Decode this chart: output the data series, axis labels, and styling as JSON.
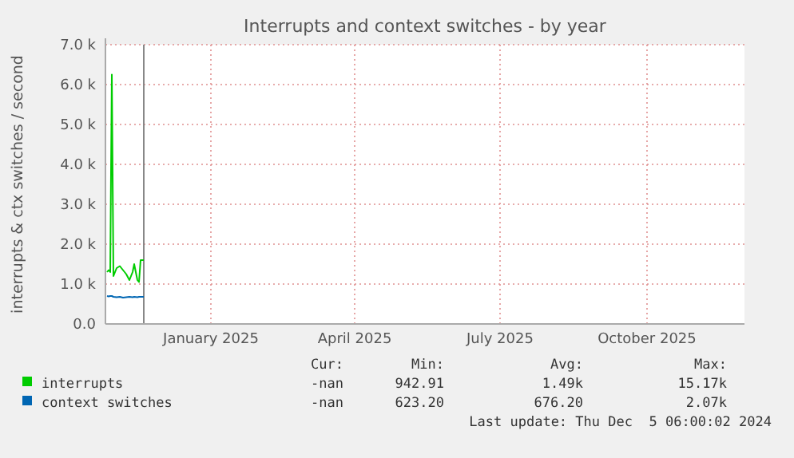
{
  "chart_data": {
    "type": "line",
    "title": "Interrupts and context switches - by year",
    "ylabel": "interrupts & ctx switches / second",
    "x": [
      "2024-11-12",
      "2024-11-13",
      "2024-11-14",
      "2024-11-15",
      "2024-11-16",
      "2024-11-18",
      "2024-11-20",
      "2024-11-22",
      "2024-11-24",
      "2024-11-26",
      "2024-11-28",
      "2024-11-29",
      "2024-12-01",
      "2024-12-02",
      "2024-12-03",
      "2024-12-05"
    ],
    "series": [
      {
        "name": "interrupts",
        "color": "#00cc00",
        "values": [
          1.3,
          1.35,
          1.3,
          6.25,
          1.2,
          1.4,
          1.45,
          1.35,
          1.25,
          1.1,
          1.3,
          1.5,
          1.1,
          1.05,
          1.6,
          1.6
        ]
      },
      {
        "name": "context switches",
        "color": "#0066b3",
        "values": [
          0.7,
          0.69,
          0.7,
          0.7,
          0.68,
          0.67,
          0.68,
          0.66,
          0.67,
          0.68,
          0.67,
          0.68,
          0.67,
          0.68,
          0.68,
          0.68
        ]
      }
    ],
    "xlim": [
      "2024-11-11",
      "2025-12-16"
    ],
    "xticks": [
      {
        "value": "2025-01-16",
        "label": "January 2025"
      },
      {
        "value": "2025-04-16",
        "label": "April 2025"
      },
      {
        "value": "2025-07-16",
        "label": "July 2025"
      },
      {
        "value": "2025-10-16",
        "label": "October 2025"
      }
    ],
    "ylim": [
      0,
      7
    ],
    "yticks": [
      {
        "value": 0,
        "label": "0.0"
      },
      {
        "value": 1,
        "label": "1.0 k"
      },
      {
        "value": 2,
        "label": "2.0 k"
      },
      {
        "value": 3,
        "label": "3.0 k"
      },
      {
        "value": 4,
        "label": "4.0 k"
      },
      {
        "value": 5,
        "label": "5.0 k"
      },
      {
        "value": 6,
        "label": "6.0 k"
      },
      {
        "value": 7,
        "label": "7.0 k"
      }
    ],
    "grid": true,
    "legend": "bottom",
    "line_style": "solid",
    "ref_lines": [
      {
        "axis": "x",
        "value": "2024-12-05",
        "color": "#888888"
      }
    ],
    "annotations": [
      "Cur:",
      "Min:",
      "Avg:",
      "Max:",
      "-nan",
      "942.91",
      "1.49k",
      "15.17k",
      "-nan",
      "623.20",
      "676.20",
      "2.07k",
      "Last update: Thu Dec  5 06:00:02 2024"
    ]
  }
}
